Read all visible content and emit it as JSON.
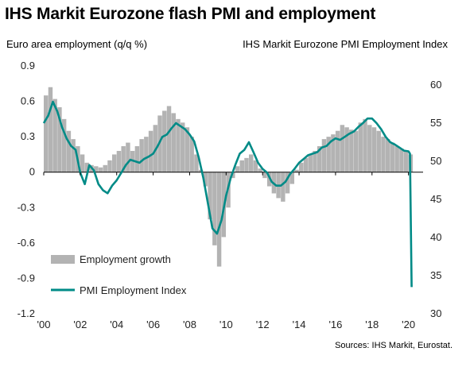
{
  "header": {
    "title": "IHS Markit Eurozone flash PMI and employment",
    "left_axis_label": "Euro area employment (q/q %)",
    "right_axis_label": "IHS Markit Eurozone PMI Employment Index"
  },
  "footer": {
    "source": "Sources: IHS Markit, Eurostat."
  },
  "colors": {
    "bars": "#b3b3b3",
    "line": "#008b87",
    "zero_line": "#000000"
  },
  "chart_data": {
    "type": "bar+line",
    "title": "IHS Markit Eurozone flash PMI and employment",
    "xlabel": "",
    "left_ylabel": "Euro area employment (q/q %)",
    "right_ylabel": "IHS Markit Eurozone PMI Employment Index",
    "x_ticks": [
      "'00",
      "'02",
      "'04",
      "'06",
      "'08",
      "'10",
      "'12",
      "'14",
      "'16",
      "'18",
      "'20"
    ],
    "left_y_ticks": [
      "0.9",
      "0.6",
      "0.3",
      "0",
      "-0.3",
      "-0.6",
      "-0.9",
      "-1.2"
    ],
    "right_y_ticks": [
      "60",
      "55",
      "50",
      "45",
      "40",
      "35",
      "30"
    ],
    "left_ylim": [
      -1.2,
      0.9
    ],
    "right_ylim": [
      30,
      62.5
    ],
    "xlim": [
      2000,
      2020.8
    ],
    "grid": false,
    "legend_position": "bottom-left",
    "series": [
      {
        "name": "Employment growth",
        "type": "bar",
        "axis": "left",
        "points": [
          [
            2000.0,
            0.65
          ],
          [
            2000.25,
            0.72
          ],
          [
            2000.5,
            0.62
          ],
          [
            2000.75,
            0.55
          ],
          [
            2001.0,
            0.45
          ],
          [
            2001.25,
            0.35
          ],
          [
            2001.5,
            0.28
          ],
          [
            2001.75,
            0.22
          ],
          [
            2002.0,
            0.15
          ],
          [
            2002.25,
            0.08
          ],
          [
            2002.5,
            0.06
          ],
          [
            2002.75,
            0.05
          ],
          [
            2003.0,
            0.04
          ],
          [
            2003.25,
            0.06
          ],
          [
            2003.5,
            0.1
          ],
          [
            2003.75,
            0.15
          ],
          [
            2004.0,
            0.18
          ],
          [
            2004.25,
            0.22
          ],
          [
            2004.5,
            0.25
          ],
          [
            2004.75,
            0.18
          ],
          [
            2005.0,
            0.22
          ],
          [
            2005.25,
            0.28
          ],
          [
            2005.5,
            0.3
          ],
          [
            2005.75,
            0.35
          ],
          [
            2006.0,
            0.4
          ],
          [
            2006.25,
            0.48
          ],
          [
            2006.5,
            0.52
          ],
          [
            2006.75,
            0.56
          ],
          [
            2007.0,
            0.5
          ],
          [
            2007.25,
            0.45
          ],
          [
            2007.5,
            0.42
          ],
          [
            2007.75,
            0.38
          ],
          [
            2008.0,
            0.3
          ],
          [
            2008.25,
            0.15
          ],
          [
            2008.5,
            0.02
          ],
          [
            2008.75,
            -0.12
          ],
          [
            2009.0,
            -0.4
          ],
          [
            2009.25,
            -0.62
          ],
          [
            2009.5,
            -0.8
          ],
          [
            2009.75,
            -0.55
          ],
          [
            2010.0,
            -0.3
          ],
          [
            2010.25,
            -0.05
          ],
          [
            2010.5,
            0.05
          ],
          [
            2010.75,
            0.1
          ],
          [
            2011.0,
            0.12
          ],
          [
            2011.25,
            0.15
          ],
          [
            2011.5,
            0.1
          ],
          [
            2011.75,
            0.03
          ],
          [
            2012.0,
            -0.05
          ],
          [
            2012.25,
            -0.12
          ],
          [
            2012.5,
            -0.18
          ],
          [
            2012.75,
            -0.22
          ],
          [
            2013.0,
            -0.25
          ],
          [
            2013.25,
            -0.18
          ],
          [
            2013.5,
            -0.1
          ],
          [
            2013.75,
            0.02
          ],
          [
            2014.0,
            0.08
          ],
          [
            2014.25,
            0.12
          ],
          [
            2014.5,
            0.15
          ],
          [
            2014.75,
            0.18
          ],
          [
            2015.0,
            0.22
          ],
          [
            2015.25,
            0.28
          ],
          [
            2015.5,
            0.3
          ],
          [
            2015.75,
            0.32
          ],
          [
            2016.0,
            0.35
          ],
          [
            2016.25,
            0.4
          ],
          [
            2016.5,
            0.38
          ],
          [
            2016.75,
            0.36
          ],
          [
            2017.0,
            0.35
          ],
          [
            2017.25,
            0.42
          ],
          [
            2017.5,
            0.45
          ],
          [
            2017.75,
            0.4
          ],
          [
            2018.0,
            0.38
          ],
          [
            2018.25,
            0.35
          ],
          [
            2018.5,
            0.3
          ],
          [
            2018.75,
            0.28
          ],
          [
            2019.0,
            0.25
          ],
          [
            2019.25,
            0.22
          ],
          [
            2019.5,
            0.2
          ],
          [
            2019.75,
            0.18
          ],
          [
            2020.0,
            0.15
          ]
        ]
      },
      {
        "name": "PMI Employment Index",
        "type": "line",
        "axis": "right",
        "points": [
          [
            2000.0,
            55.0
          ],
          [
            2000.25,
            56.0
          ],
          [
            2000.5,
            57.8
          ],
          [
            2000.75,
            56.5
          ],
          [
            2001.0,
            54.5
          ],
          [
            2001.25,
            53.0
          ],
          [
            2001.5,
            52.0
          ],
          [
            2001.75,
            51.5
          ],
          [
            2002.0,
            48.5
          ],
          [
            2002.25,
            47.0
          ],
          [
            2002.5,
            49.5
          ],
          [
            2002.75,
            48.8
          ],
          [
            2003.0,
            47.0
          ],
          [
            2003.25,
            46.2
          ],
          [
            2003.5,
            45.8
          ],
          [
            2003.75,
            46.8
          ],
          [
            2004.0,
            47.5
          ],
          [
            2004.25,
            48.5
          ],
          [
            2004.5,
            49.5
          ],
          [
            2004.75,
            50.2
          ],
          [
            2005.0,
            50.0
          ],
          [
            2005.25,
            49.8
          ],
          [
            2005.5,
            50.3
          ],
          [
            2005.75,
            50.6
          ],
          [
            2006.0,
            51.0
          ],
          [
            2006.25,
            52.0
          ],
          [
            2006.5,
            53.2
          ],
          [
            2006.75,
            53.5
          ],
          [
            2007.0,
            54.3
          ],
          [
            2007.25,
            55.0
          ],
          [
            2007.5,
            54.6
          ],
          [
            2007.75,
            54.2
          ],
          [
            2008.0,
            53.5
          ],
          [
            2008.25,
            52.6
          ],
          [
            2008.5,
            50.5
          ],
          [
            2008.75,
            47.8
          ],
          [
            2009.0,
            44.5
          ],
          [
            2009.25,
            41.2
          ],
          [
            2009.5,
            40.5
          ],
          [
            2009.75,
            42.3
          ],
          [
            2010.0,
            45.5
          ],
          [
            2010.25,
            47.8
          ],
          [
            2010.5,
            49.5
          ],
          [
            2010.75,
            51.0
          ],
          [
            2011.0,
            51.5
          ],
          [
            2011.25,
            52.5
          ],
          [
            2011.5,
            51.2
          ],
          [
            2011.75,
            49.8
          ],
          [
            2012.0,
            49.0
          ],
          [
            2012.25,
            48.5
          ],
          [
            2012.5,
            47.3
          ],
          [
            2012.75,
            46.8
          ],
          [
            2013.0,
            46.8
          ],
          [
            2013.25,
            47.3
          ],
          [
            2013.5,
            48.3
          ],
          [
            2013.75,
            49.0
          ],
          [
            2014.0,
            49.8
          ],
          [
            2014.25,
            50.3
          ],
          [
            2014.5,
            50.8
          ],
          [
            2014.75,
            51.0
          ],
          [
            2015.0,
            51.2
          ],
          [
            2015.25,
            51.8
          ],
          [
            2015.5,
            52.0
          ],
          [
            2015.75,
            52.6
          ],
          [
            2016.0,
            53.0
          ],
          [
            2016.25,
            52.8
          ],
          [
            2016.5,
            53.2
          ],
          [
            2016.75,
            53.6
          ],
          [
            2017.0,
            53.9
          ],
          [
            2017.25,
            54.5
          ],
          [
            2017.5,
            55.0
          ],
          [
            2017.75,
            55.6
          ],
          [
            2018.0,
            55.6
          ],
          [
            2018.25,
            55.0
          ],
          [
            2018.5,
            54.2
          ],
          [
            2018.75,
            53.2
          ],
          [
            2019.0,
            52.5
          ],
          [
            2019.25,
            52.2
          ],
          [
            2019.5,
            51.8
          ],
          [
            2019.75,
            51.4
          ],
          [
            2020.0,
            51.3
          ],
          [
            2020.08,
            51.0
          ],
          [
            2020.17,
            33.5
          ]
        ]
      }
    ]
  }
}
